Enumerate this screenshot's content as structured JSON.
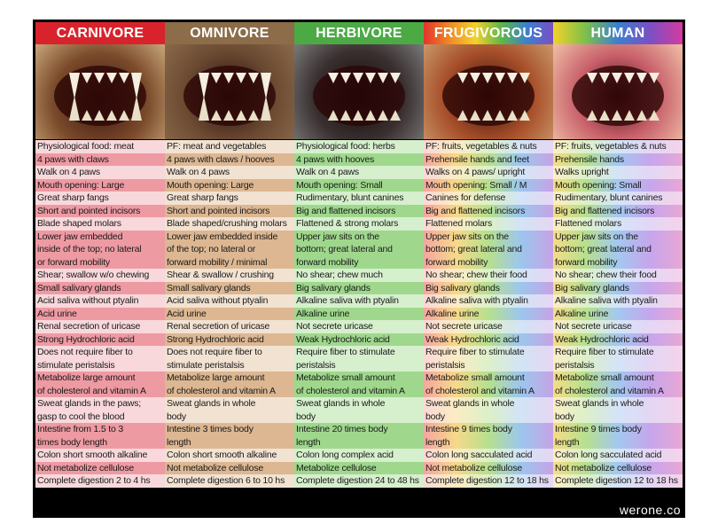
{
  "header": {
    "columns": [
      "CARNIVORE",
      "OMNIVORE",
      "HERBIVORE",
      "FRUGIVOROUS",
      "HUMAN"
    ]
  },
  "table": {
    "rows": [
      [
        [
          "Physiological food: meat"
        ],
        [
          "PF: meat and vegetables"
        ],
        [
          "Physiological food: herbs"
        ],
        [
          "PF: fruits, vegetables & nuts"
        ],
        [
          "PF: fruits, vegetables & nuts"
        ]
      ],
      [
        [
          "4 paws with claws"
        ],
        [
          "4 paws with claws / hooves"
        ],
        [
          "4 paws with hooves"
        ],
        [
          "Prehensile hands and feet"
        ],
        [
          "Prehensile hands"
        ]
      ],
      [
        [
          "Walk on 4 paws"
        ],
        [
          "Walk on 4 paws"
        ],
        [
          "Walk on 4 paws"
        ],
        [
          "Walks on 4 paws/ upright"
        ],
        [
          "Walks upright"
        ]
      ],
      [
        [
          "Mouth opening: Large"
        ],
        [
          "Mouth opening: Large"
        ],
        [
          "Mouth opening: Small"
        ],
        [
          "Mouth opening: Small / M"
        ],
        [
          "Mouth opening: Small"
        ]
      ],
      [
        [
          "Great sharp fangs"
        ],
        [
          "Great sharp fangs"
        ],
        [
          "Rudimentary, blunt canines"
        ],
        [
          "Canines for defense"
        ],
        [
          "Rudimentary, blunt canines"
        ]
      ],
      [
        [
          "Short and pointed incisors"
        ],
        [
          "Short and pointed incisors"
        ],
        [
          "Big and flattened incisors"
        ],
        [
          "Big and flattened incisors"
        ],
        [
          "Big and flattened incisors"
        ]
      ],
      [
        [
          "Blade shaped molars"
        ],
        [
          "Blade shaped/crushing molars"
        ],
        [
          "Flattened & strong molars"
        ],
        [
          "Flattened molars"
        ],
        [
          "Flattened molars"
        ]
      ],
      [
        [
          "Lower jaw embedded",
          "inside of the top; no lateral",
          "or forward mobility"
        ],
        [
          "Lower jaw embedded inside",
          "of the top; no lateral or",
          "forward mobility / minimal"
        ],
        [
          "Upper jaw sits on the",
          "bottom; great lateral and",
          "forward mobility"
        ],
        [
          "Upper jaw sits on the",
          "bottom; great lateral and",
          "forward mobility"
        ],
        [
          "Upper jaw sits on the",
          "bottom; great lateral and",
          "forward mobility"
        ]
      ],
      [
        [
          "Shear; swallow w/o chewing"
        ],
        [
          "Shear & swallow / crushing"
        ],
        [
          "No shear; chew much"
        ],
        [
          "No shear; chew their food"
        ],
        [
          "No shear; chew their food"
        ]
      ],
      [
        [
          "Small salivary glands"
        ],
        [
          "Small salivary glands"
        ],
        [
          "Big salivary glands"
        ],
        [
          "Big salivary glands"
        ],
        [
          "Big salivary glands"
        ]
      ],
      [
        [
          "Acid saliva without ptyalin"
        ],
        [
          "Acid saliva without ptyalin"
        ],
        [
          "Alkaline saliva with ptyalin"
        ],
        [
          "Alkaline saliva with ptyalin"
        ],
        [
          "Alkaline saliva with ptyalin"
        ]
      ],
      [
        [
          "Acid urine"
        ],
        [
          "Acid urine"
        ],
        [
          "Alkaline urine"
        ],
        [
          "Alkaline urine"
        ],
        [
          "Alkaline urine"
        ]
      ],
      [
        [
          "Renal secretion of uricase"
        ],
        [
          "Renal secretion of uricase"
        ],
        [
          "Not secrete uricase"
        ],
        [
          "Not secrete uricase"
        ],
        [
          "Not secrete uricase"
        ]
      ],
      [
        [
          "Strong Hydrochloric acid"
        ],
        [
          "Strong Hydrochloric acid"
        ],
        [
          "Weak Hydrochloric acid"
        ],
        [
          "Weak Hydrochloric acid"
        ],
        [
          "Weak Hydrochloric acid"
        ]
      ],
      [
        [
          "Does not require fiber to",
          "stimulate peristalsis"
        ],
        [
          "Does not require fiber to",
          "stimulate peristalsis"
        ],
        [
          "Require fiber to stimulate",
          "peristalsis"
        ],
        [
          "Require fiber to stimulate",
          "peristalsis"
        ],
        [
          "Require fiber to stimulate",
          "peristalsis"
        ]
      ],
      [
        [
          "Metabolize large amount",
          "of cholesterol and vitamin A"
        ],
        [
          "Metabolize large amount",
          "of cholesterol and vitamin A"
        ],
        [
          "Metabolize small amount",
          "of cholesterol and vitamin A"
        ],
        [
          "Metabolize small amount",
          "of cholesterol and vitamin A"
        ],
        [
          "Metabolize small amount",
          "of cholesterol and vitamin A"
        ]
      ],
      [
        [
          "Sweat glands in the paws;",
          "gasp to cool the blood"
        ],
        [
          "Sweat glands in whole",
          "body"
        ],
        [
          "Sweat glands in whole",
          "body"
        ],
        [
          "Sweat glands in whole",
          "body"
        ],
        [
          "Sweat glands in whole",
          "body"
        ]
      ],
      [
        [
          "Intestine from 1.5 to 3",
          "times body length"
        ],
        [
          "Intestine 3 times body",
          "length"
        ],
        [
          "Intestine 20 times body",
          "length"
        ],
        [
          "Intestine 9 times body",
          "length"
        ],
        [
          "Intestine 9 times body",
          "length"
        ]
      ],
      [
        [
          "Colon short smooth alkaline"
        ],
        [
          "Colon short smooth alkaline"
        ],
        [
          "Colon long complex acid"
        ],
        [
          "Colon long sacculated acid"
        ],
        [
          "Colon long sacculated acid"
        ]
      ],
      [
        [
          "Not metabolize cellulose"
        ],
        [
          "Not metabolize cellulose"
        ],
        [
          "Metabolize cellulose"
        ],
        [
          "Not metabolize cellulose"
        ],
        [
          "Not metabolize cellulose"
        ]
      ],
      [
        [
          "Complete digestion 2 to 4 hs"
        ],
        [
          "Complete digestion 6 to 10 hs"
        ],
        [
          "Complete digestion 24 to 48 hs"
        ],
        [
          "Complete digestion 12 to 18 hs"
        ],
        [
          "Complete digestion 12 to 18 hs"
        ]
      ]
    ]
  },
  "footer": {
    "credit": "werone.co"
  }
}
